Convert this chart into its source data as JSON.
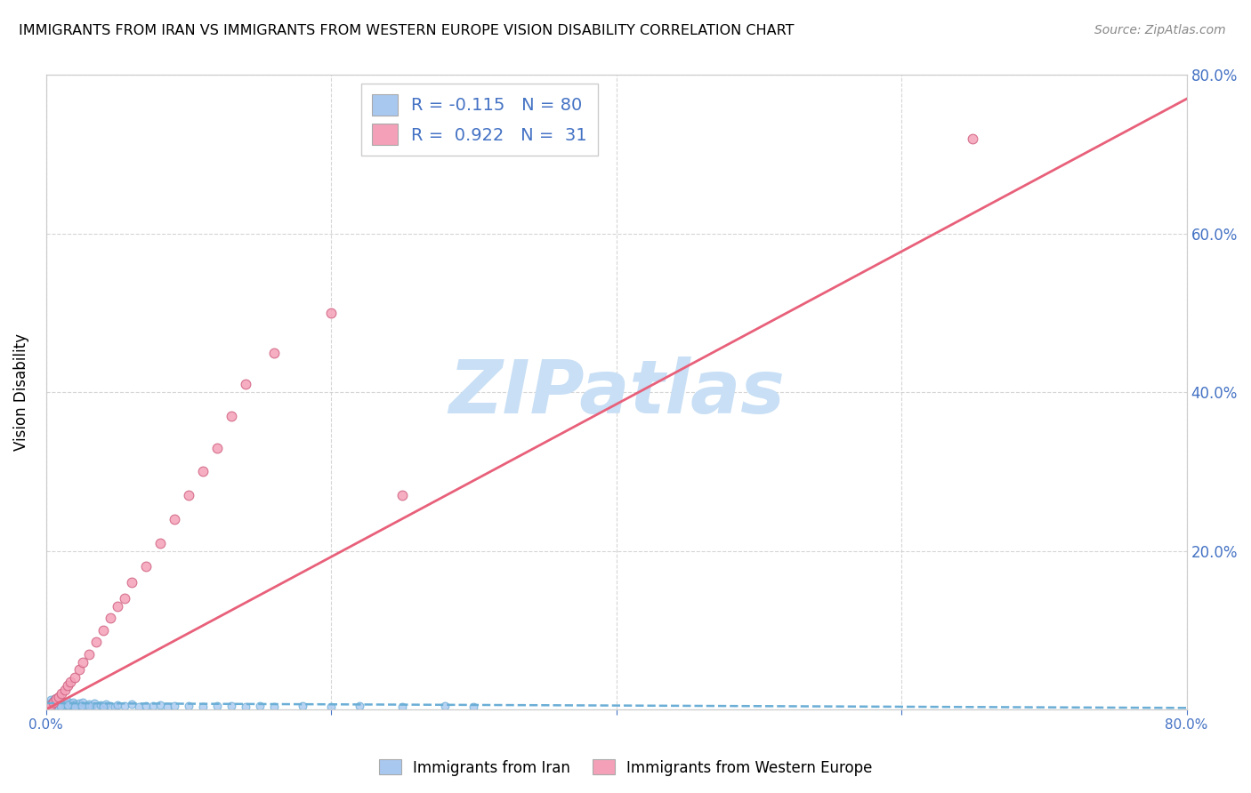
{
  "title": "IMMIGRANTS FROM IRAN VS IMMIGRANTS FROM WESTERN EUROPE VISION DISABILITY CORRELATION CHART",
  "source": "Source: ZipAtlas.com",
  "ylabel": "Vision Disability",
  "xlabel_iran": "Immigrants from Iran",
  "xlabel_we": "Immigrants from Western Europe",
  "R_iran": -0.115,
  "N_iran": 80,
  "R_we": 0.922,
  "N_we": 31,
  "color_iran": "#A8C8F0",
  "color_we": "#F4A0B8",
  "trendline_iran_color": "#6BAED6",
  "trendline_we_color": "#E8607A",
  "xlim": [
    0,
    0.8
  ],
  "ylim": [
    0,
    0.8
  ],
  "watermark": "ZIPatlas",
  "watermark_color": "#C8DFF5",
  "grid_color": "#CCCCCC",
  "tick_color": "#4472C4",
  "iran_x": [
    0.001,
    0.002,
    0.002,
    0.003,
    0.003,
    0.004,
    0.004,
    0.005,
    0.005,
    0.006,
    0.006,
    0.007,
    0.007,
    0.008,
    0.008,
    0.009,
    0.009,
    0.01,
    0.01,
    0.011,
    0.011,
    0.012,
    0.012,
    0.013,
    0.014,
    0.015,
    0.015,
    0.016,
    0.017,
    0.018,
    0.019,
    0.02,
    0.021,
    0.022,
    0.023,
    0.024,
    0.025,
    0.026,
    0.028,
    0.03,
    0.032,
    0.034,
    0.036,
    0.038,
    0.04,
    0.042,
    0.045,
    0.048,
    0.05,
    0.055,
    0.06,
    0.065,
    0.07,
    0.075,
    0.08,
    0.085,
    0.09,
    0.1,
    0.11,
    0.12,
    0.13,
    0.14,
    0.15,
    0.16,
    0.18,
    0.2,
    0.22,
    0.25,
    0.28,
    0.3,
    0.001,
    0.003,
    0.005,
    0.008,
    0.01,
    0.015,
    0.02,
    0.025,
    0.03,
    0.04
  ],
  "iran_y": [
    0.005,
    0.008,
    0.003,
    0.006,
    0.012,
    0.004,
    0.009,
    0.007,
    0.011,
    0.005,
    0.013,
    0.006,
    0.01,
    0.004,
    0.008,
    0.012,
    0.006,
    0.009,
    0.004,
    0.007,
    0.011,
    0.005,
    0.009,
    0.003,
    0.007,
    0.005,
    0.01,
    0.004,
    0.008,
    0.006,
    0.009,
    0.004,
    0.007,
    0.005,
    0.008,
    0.003,
    0.006,
    0.009,
    0.004,
    0.007,
    0.005,
    0.008,
    0.003,
    0.006,
    0.004,
    0.007,
    0.005,
    0.003,
    0.006,
    0.004,
    0.007,
    0.003,
    0.005,
    0.004,
    0.006,
    0.003,
    0.005,
    0.004,
    0.003,
    0.005,
    0.004,
    0.003,
    0.005,
    0.003,
    0.004,
    0.003,
    0.004,
    0.003,
    0.004,
    0.003,
    0.002,
    0.004,
    0.003,
    0.005,
    0.004,
    0.006,
    0.003,
    0.005,
    0.004,
    0.003
  ],
  "we_x": [
    0.001,
    0.003,
    0.005,
    0.007,
    0.009,
    0.011,
    0.013,
    0.015,
    0.017,
    0.02,
    0.023,
    0.026,
    0.03,
    0.035,
    0.04,
    0.045,
    0.05,
    0.055,
    0.06,
    0.07,
    0.08,
    0.09,
    0.1,
    0.11,
    0.12,
    0.13,
    0.14,
    0.16,
    0.2,
    0.25,
    0.65
  ],
  "we_y": [
    0.003,
    0.006,
    0.009,
    0.013,
    0.016,
    0.02,
    0.025,
    0.03,
    0.035,
    0.04,
    0.05,
    0.06,
    0.07,
    0.085,
    0.1,
    0.115,
    0.13,
    0.14,
    0.16,
    0.18,
    0.21,
    0.24,
    0.27,
    0.3,
    0.33,
    0.37,
    0.41,
    0.45,
    0.5,
    0.27,
    0.72
  ],
  "we_trendline_x": [
    0.0,
    0.8
  ],
  "we_trendline_y": [
    0.0,
    0.77
  ],
  "iran_trendline_x": [
    0.0,
    0.8
  ],
  "iran_trendline_y": [
    0.008,
    0.002
  ]
}
